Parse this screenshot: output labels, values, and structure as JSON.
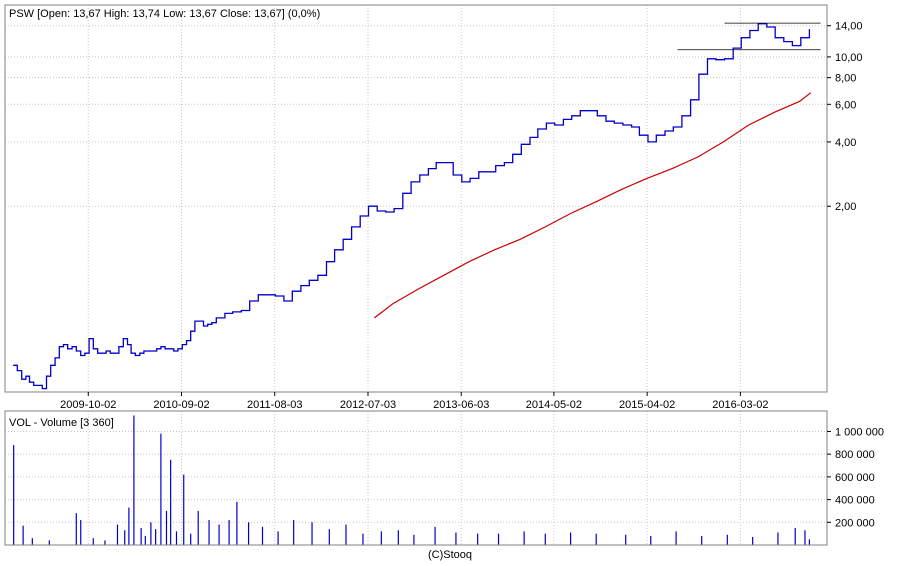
{
  "colors": {
    "price": "#0000cc",
    "ma": "#cc0000",
    "volume": "#0000cc",
    "grid": "#c8c8c8",
    "frame": "#808080"
  },
  "copyright": "(C)Stooq",
  "chart_data": [
    {
      "type": "line",
      "title": "PSW [Open: 13,67  High: 13,74  Low: 13,67  Close: 13,67] (0,0%)",
      "series": [
        {
          "name": "",
          "x": [
            "2009-01-05",
            "2009-01-20",
            "2009-02-05",
            "2009-02-20",
            "2009-03-05",
            "2009-03-20",
            "2009-04-05",
            "2009-04-20",
            "2009-05-05",
            "2009-05-20",
            "2009-06-05",
            "2009-06-20",
            "2009-07-05",
            "2009-07-20",
            "2009-08-05",
            "2009-08-20",
            "2009-09-05",
            "2009-09-20",
            "2009-10-05",
            "2009-10-20",
            "2009-11-05",
            "2009-11-20",
            "2009-12-05",
            "2009-12-20",
            "2010-01-05",
            "2010-01-20",
            "2010-02-05",
            "2010-02-20",
            "2010-03-05",
            "2010-03-20",
            "2010-04-05",
            "2010-04-20",
            "2010-05-05",
            "2010-05-20",
            "2010-06-05",
            "2010-06-20",
            "2010-07-05",
            "2010-07-20",
            "2010-08-05",
            "2010-08-20",
            "2010-09-05",
            "2010-09-20",
            "2010-10-05",
            "2010-10-20",
            "2010-11-05",
            "2010-11-20",
            "2010-12-05",
            "2010-12-20",
            "2011-01-05",
            "2011-02-05",
            "2011-03-05",
            "2011-04-05",
            "2011-05-05",
            "2011-06-05",
            "2011-07-05",
            "2011-08-05",
            "2011-09-05",
            "2011-10-05",
            "2011-11-05",
            "2011-12-05",
            "2012-01-05",
            "2012-02-05",
            "2012-03-05",
            "2012-04-05",
            "2012-05-05",
            "2012-06-05",
            "2012-07-05",
            "2012-08-05",
            "2012-09-05",
            "2012-10-05",
            "2012-11-05",
            "2012-12-05",
            "2013-01-05",
            "2013-02-05",
            "2013-03-05",
            "2013-04-05",
            "2013-05-05",
            "2013-06-05",
            "2013-07-05",
            "2013-08-05",
            "2013-09-05",
            "2013-10-05",
            "2013-11-05",
            "2013-12-05",
            "2014-01-05",
            "2014-02-05",
            "2014-03-05",
            "2014-04-05",
            "2014-05-05",
            "2014-06-05",
            "2014-07-05",
            "2014-08-05",
            "2014-09-05",
            "2014-10-05",
            "2014-11-05",
            "2014-12-05",
            "2015-01-05",
            "2015-02-05",
            "2015-03-05",
            "2015-04-05",
            "2015-05-05",
            "2015-06-05",
            "2015-07-05",
            "2015-08-05",
            "2015-09-05",
            "2015-10-05",
            "2015-11-05",
            "2015-12-05",
            "2016-01-05",
            "2016-02-05",
            "2016-03-05",
            "2016-04-05",
            "2016-05-05",
            "2016-06-05",
            "2016-07-05",
            "2016-08-05",
            "2016-09-05",
            "2016-10-05",
            "2016-11-05"
          ],
          "values": [
            0.36,
            0.34,
            0.31,
            0.32,
            0.3,
            0.29,
            0.29,
            0.28,
            0.32,
            0.36,
            0.39,
            0.44,
            0.45,
            0.43,
            0.44,
            0.42,
            0.4,
            0.41,
            0.48,
            0.43,
            0.41,
            0.41,
            0.42,
            0.41,
            0.41,
            0.44,
            0.48,
            0.45,
            0.41,
            0.4,
            0.41,
            0.42,
            0.42,
            0.42,
            0.43,
            0.44,
            0.43,
            0.43,
            0.42,
            0.43,
            0.45,
            0.47,
            0.52,
            0.58,
            0.58,
            0.55,
            0.56,
            0.57,
            0.6,
            0.63,
            0.64,
            0.65,
            0.72,
            0.77,
            0.77,
            0.76,
            0.72,
            0.8,
            0.85,
            0.9,
            0.95,
            1.1,
            1.25,
            1.4,
            1.6,
            1.8,
            2.0,
            1.9,
            1.88,
            1.95,
            2.3,
            2.6,
            2.8,
            3.0,
            3.2,
            3.2,
            2.8,
            2.6,
            2.7,
            2.9,
            2.9,
            3.1,
            3.2,
            3.5,
            3.9,
            4.2,
            4.6,
            4.9,
            4.8,
            5.1,
            5.3,
            5.6,
            5.6,
            5.3,
            5.0,
            4.9,
            4.8,
            4.7,
            4.3,
            4.0,
            4.3,
            4.5,
            4.7,
            5.3,
            6.3,
            8.3,
            9.8,
            9.7,
            9.8,
            11.0,
            12.3,
            13.3,
            14.3,
            13.8,
            12.3,
            11.8,
            11.3,
            12.3,
            13.5
          ]
        },
        {
          "name": "",
          "x": [
            "2012-07-26",
            "2012-10-01",
            "2013-01-01",
            "2013-04-01",
            "2013-07-01",
            "2013-10-01",
            "2014-01-01",
            "2014-04-01",
            "2014-07-01",
            "2014-10-01",
            "2015-01-01",
            "2015-04-01",
            "2015-07-01",
            "2015-10-01",
            "2016-01-01",
            "2016-04-01",
            "2016-07-01",
            "2016-10-01",
            "2016-11-10"
          ],
          "values": [
            0.6,
            0.7,
            0.82,
            0.95,
            1.1,
            1.25,
            1.4,
            1.6,
            1.85,
            2.1,
            2.4,
            2.7,
            3.0,
            3.4,
            4.0,
            4.8,
            5.5,
            6.2,
            6.8
          ]
        }
      ],
      "ylabel": "",
      "ytick_labels": [
        "14,00",
        "10,00",
        "8,00",
        "6,00",
        "4,00",
        "2,00"
      ],
      "y_scale": "log",
      "ylim": [
        0.27,
        17.5
      ],
      "xlim": [
        "2009-01-01",
        "2016-12-31"
      ],
      "xtick_labels": [
        "2009-10-02",
        "2010-09-02",
        "2011-08-03",
        "2012-07-03",
        "2013-06-03",
        "2014-05-02",
        "2015-04-02",
        "2016-03-02"
      ],
      "annotations": [
        {
          "type": "hline",
          "y": 14.4,
          "x_start": "2016-01-05",
          "x_end": "2016-12-15"
        },
        {
          "type": "hline",
          "y": 10.8,
          "x_start": "2015-07-20",
          "x_end": "2016-12-15"
        }
      ],
      "grid": true
    },
    {
      "type": "bar",
      "title": "VOL - Volume [3 360]",
      "x": [
        "2009-01-07",
        "2009-02-10",
        "2009-03-15",
        "2009-05-15",
        "2009-08-20",
        "2009-09-05",
        "2009-10-20",
        "2009-12-01",
        "2010-01-15",
        "2010-02-10",
        "2010-02-25",
        "2010-03-15",
        "2010-04-10",
        "2010-04-25",
        "2010-05-15",
        "2010-06-01",
        "2010-06-20",
        "2010-07-10",
        "2010-07-25",
        "2010-08-15",
        "2010-09-10",
        "2010-10-05",
        "2010-11-01",
        "2010-12-10",
        "2011-01-15",
        "2011-02-20",
        "2011-03-20",
        "2011-05-01",
        "2011-06-20",
        "2011-08-15",
        "2011-10-10",
        "2011-12-15",
        "2012-02-15",
        "2012-04-15",
        "2012-06-15",
        "2012-08-20",
        "2012-10-20",
        "2012-12-15",
        "2013-03-01",
        "2013-05-15",
        "2013-08-01",
        "2013-10-15",
        "2014-01-15",
        "2014-04-01",
        "2014-07-01",
        "2014-10-01",
        "2015-01-15",
        "2015-04-15",
        "2015-07-15",
        "2015-10-15",
        "2016-01-15",
        "2016-04-15",
        "2016-07-15",
        "2016-09-15",
        "2016-10-20",
        "2016-11-05"
      ],
      "values": [
        880000,
        170000,
        60000,
        40000,
        280000,
        220000,
        60000,
        40000,
        180000,
        130000,
        330000,
        1140000,
        150000,
        80000,
        200000,
        140000,
        980000,
        300000,
        750000,
        120000,
        620000,
        100000,
        300000,
        220000,
        180000,
        220000,
        380000,
        200000,
        160000,
        120000,
        220000,
        200000,
        140000,
        180000,
        100000,
        120000,
        130000,
        90000,
        160000,
        110000,
        100000,
        100000,
        120000,
        100000,
        110000,
        100000,
        90000,
        80000,
        120000,
        80000,
        90000,
        70000,
        110000,
        150000,
        130000,
        50000
      ],
      "ytick_labels": [
        "1 000 000",
        "800 000",
        "600 000",
        "400 000",
        "200 000"
      ],
      "ylim": [
        0,
        1180000
      ],
      "xlim": [
        "2009-01-01",
        "2016-12-31"
      ],
      "grid": true
    }
  ]
}
